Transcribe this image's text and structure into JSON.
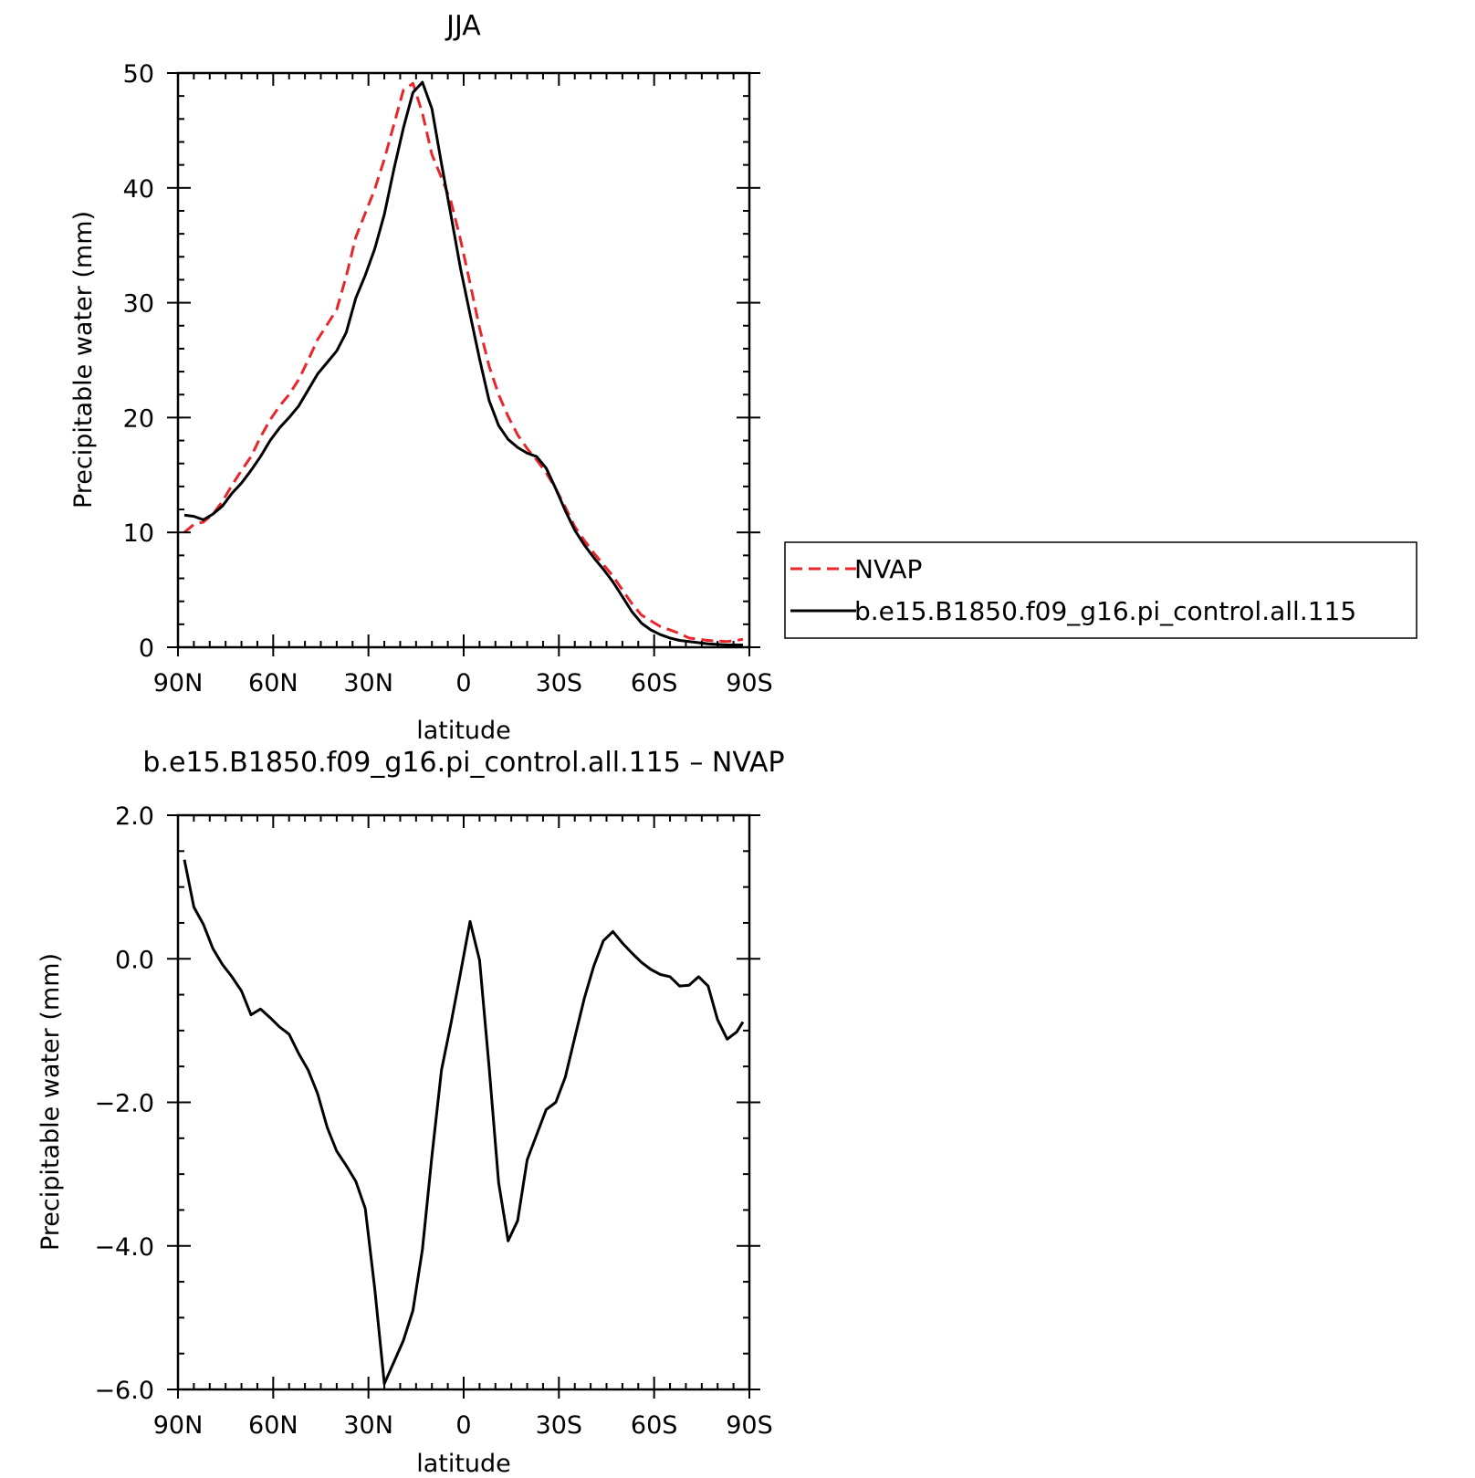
{
  "chart_data": [
    {
      "type": "line",
      "title": "JJA",
      "xlabel": "latitude",
      "ylabel": "Precipitable water (mm)",
      "xlim": [
        90,
        -90
      ],
      "ylim": [
        0,
        50
      ],
      "x_tick_labels": [
        "90N",
        "60N",
        "30N",
        "0",
        "30S",
        "60S",
        "90S"
      ],
      "y_tick_labels": [
        "0",
        "10",
        "20",
        "30",
        "40",
        "50"
      ],
      "legend": "right",
      "series": [
        {
          "name": "NVAP",
          "color": "#e8262b",
          "style": "dashed",
          "x": [
            88,
            85,
            82,
            79,
            76,
            73,
            70,
            67,
            64,
            61,
            58,
            55,
            52,
            49,
            46,
            43,
            40,
            37,
            34,
            31,
            28,
            25,
            22,
            19,
            16,
            13,
            10,
            7,
            4,
            1,
            -2,
            -5,
            -8,
            -11,
            -14,
            -17,
            -20,
            -23,
            -26,
            -29,
            -32,
            -35,
            -38,
            -41,
            -44,
            -47,
            -50,
            -53,
            -56,
            -59,
            -62,
            -65,
            -68,
            -71,
            -74,
            -77,
            -80,
            -83,
            -86,
            -88
          ],
          "y": [
            10.0,
            10.7,
            10.9,
            11.6,
            12.7,
            14.1,
            15.4,
            16.6,
            18.3,
            19.8,
            21.0,
            22.0,
            23.3,
            25.0,
            26.8,
            28.1,
            29.4,
            32.3,
            35.7,
            37.8,
            39.9,
            42.5,
            45.5,
            48.5,
            49.1,
            46.5,
            42.9,
            40.9,
            38.8,
            35.5,
            31.7,
            27.8,
            24.5,
            22.0,
            20.1,
            18.5,
            17.3,
            16.3,
            15.2,
            13.8,
            12.2,
            10.5,
            9.3,
            8.2,
            7.2,
            6.2,
            5.0,
            3.8,
            2.8,
            2.3,
            1.8,
            1.5,
            1.2,
            0.8,
            0.7,
            0.6,
            0.55,
            0.5,
            0.6,
            0.7
          ]
        },
        {
          "name": "b.e15.B1850.f09_g16.pi_control.all.115",
          "color": "#000000",
          "style": "solid",
          "x": [
            88,
            85,
            82,
            79,
            76,
            73,
            70,
            67,
            64,
            61,
            58,
            55,
            52,
            49,
            46,
            43,
            40,
            37,
            34,
            31,
            28,
            25,
            22,
            19,
            16,
            13,
            10,
            7,
            4,
            1,
            -2,
            -5,
            -8,
            -11,
            -14,
            -17,
            -20,
            -23,
            -26,
            -29,
            -32,
            -35,
            -38,
            -41,
            -44,
            -47,
            -50,
            -53,
            -56,
            -59,
            -62,
            -65,
            -68,
            -71,
            -74,
            -77,
            -80,
            -83,
            -86,
            -88
          ],
          "y": [
            11.5,
            11.4,
            11.1,
            11.6,
            12.3,
            13.4,
            14.3,
            15.4,
            16.6,
            18.0,
            19.1,
            20.0,
            21.0,
            22.4,
            23.8,
            24.8,
            25.8,
            27.4,
            30.4,
            32.4,
            34.7,
            37.7,
            41.6,
            45.2,
            48.3,
            49.2,
            46.9,
            42.1,
            37.6,
            33.0,
            29.0,
            25.1,
            21.5,
            19.3,
            18.1,
            17.4,
            16.9,
            16.6,
            15.6,
            13.8,
            11.9,
            10.2,
            8.9,
            7.8,
            6.8,
            5.7,
            4.4,
            3.1,
            2.1,
            1.5,
            1.1,
            0.8,
            0.6,
            0.5,
            0.4,
            0.3,
            0.25,
            0.2,
            0.2,
            0.2
          ]
        }
      ]
    },
    {
      "type": "line",
      "title": "b.e15.B1850.f09_g16.pi_control.all.115 – NVAP",
      "xlabel": "latitude",
      "ylabel": "Precipitable water (mm)",
      "xlim": [
        90,
        -90
      ],
      "ylim": [
        -6.0,
        2.0
      ],
      "x_tick_labels": [
        "90N",
        "60N",
        "30N",
        "0",
        "30S",
        "60S",
        "90S"
      ],
      "y_tick_labels": [
        "−6.0",
        "−4.0",
        "−2.0",
        "0.0",
        "2.0"
      ],
      "series": [
        {
          "color": "#000000",
          "style": "solid",
          "x": [
            88,
            85,
            82,
            79,
            76,
            73,
            70,
            67,
            64,
            61,
            58,
            55,
            52,
            49,
            46,
            43,
            40,
            37,
            34,
            31,
            28,
            25,
            22,
            19,
            16,
            13,
            10,
            7,
            4,
            1,
            -2,
            -5,
            -8,
            -11,
            -14,
            -17,
            -20,
            -23,
            -26,
            -29,
            -32,
            -35,
            -38,
            -41,
            -44,
            -47,
            -50,
            -53,
            -56,
            -59,
            -62,
            -65,
            -68,
            -71,
            -74,
            -77,
            -80,
            -83,
            -86,
            -88
          ],
          "y": [
            1.38,
            0.72,
            0.48,
            0.14,
            -0.08,
            -0.25,
            -0.45,
            -0.78,
            -0.7,
            -0.82,
            -0.95,
            -1.05,
            -1.32,
            -1.55,
            -1.88,
            -2.35,
            -2.68,
            -2.88,
            -3.1,
            -3.48,
            -4.6,
            -5.92,
            -5.62,
            -5.32,
            -4.9,
            -4.05,
            -2.75,
            -1.55,
            -0.9,
            -0.2,
            0.52,
            -0.02,
            -1.5,
            -3.12,
            -3.93,
            -3.65,
            -2.8,
            -2.45,
            -2.1,
            -2.0,
            -1.65,
            -1.1,
            -0.55,
            -0.1,
            0.25,
            0.38,
            0.22,
            0.08,
            -0.05,
            -0.15,
            -0.22,
            -0.25,
            -0.38,
            -0.37,
            -0.25,
            -0.38,
            -0.85,
            -1.12,
            -1.02,
            -0.88
          ]
        }
      ]
    }
  ],
  "legend_entries": [
    {
      "label": "NVAP"
    },
    {
      "label": "b.e15.B1850.f09_g16.pi_control.all.115"
    }
  ]
}
